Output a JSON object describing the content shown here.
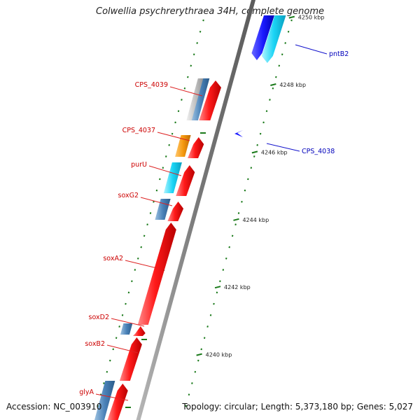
{
  "title": "Colwellia psychrerythraea 34H, complete genome",
  "footer": {
    "accession": "Accession: NC_003910",
    "topology": "Topology: circular; Length: 5,373,180 bp; Genes: 5,027"
  },
  "colors": {
    "forward_label": "#cc0000",
    "reverse_label": "#0000bb",
    "leader_forward": "#dd2222",
    "leader_reverse": "#1111cc",
    "tick": "#1a7a1a",
    "backbone": "#8c8c8c"
  },
  "tick_labels": [
    {
      "label": "4250 kbp",
      "kbp": 4250
    },
    {
      "label": "4248 kbp",
      "kbp": 4248
    },
    {
      "label": "4246 kbp",
      "kbp": 4246
    },
    {
      "label": "4244 kbp",
      "kbp": 4244
    },
    {
      "label": "4242 kbp",
      "kbp": 4242
    },
    {
      "label": "4240 kbp",
      "kbp": 4240
    }
  ],
  "feature_labels": [
    {
      "name": "pntB2",
      "strand": "reverse"
    },
    {
      "name": "CPS_4039",
      "strand": "forward"
    },
    {
      "name": "CPS_4037",
      "strand": "forward"
    },
    {
      "name": "CPS_4038",
      "strand": "reverse"
    },
    {
      "name": "purU",
      "strand": "forward"
    },
    {
      "name": "soxG2",
      "strand": "forward"
    },
    {
      "name": "soxA2",
      "strand": "forward"
    },
    {
      "name": "soxD2",
      "strand": "forward"
    },
    {
      "name": "soxB2",
      "strand": "forward"
    },
    {
      "name": "glyA",
      "strand": "forward"
    }
  ]
}
